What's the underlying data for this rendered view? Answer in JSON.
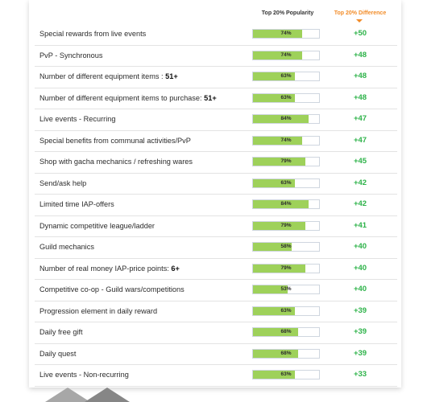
{
  "header": {
    "popularity_label": "Top 20% Popularity",
    "difference_label": "Top 20% Difference"
  },
  "colors": {
    "bar": "#9ed15a",
    "difference_text": "#2eb34a",
    "difference_header": "#f28c28"
  },
  "chart_data": {
    "type": "table",
    "columns": [
      "Top 20% Popularity",
      "Top 20% Difference"
    ],
    "sorted_by": "Top 20% Difference",
    "sort_direction": "descending",
    "rows": [
      {
        "label": "Special rewards from live events",
        "bold": "",
        "popularity": 74,
        "popularity_label": "74%",
        "difference": 50,
        "difference_label": "+50"
      },
      {
        "label": "PvP - Synchronous",
        "bold": "",
        "popularity": 74,
        "popularity_label": "74%",
        "difference": 48,
        "difference_label": "+48"
      },
      {
        "label": "Number of different equipment items : ",
        "bold": "51+",
        "popularity": 63,
        "popularity_label": "63%",
        "difference": 48,
        "difference_label": "+48"
      },
      {
        "label": "Number of different equipment items to purchase: ",
        "bold": "51+",
        "popularity": 63,
        "popularity_label": "63%",
        "difference": 48,
        "difference_label": "+48"
      },
      {
        "label": "Live events - Recurring",
        "bold": "",
        "popularity": 84,
        "popularity_label": "84%",
        "difference": 47,
        "difference_label": "+47"
      },
      {
        "label": "Special benefits from communal activities/PvP",
        "bold": "",
        "popularity": 74,
        "popularity_label": "74%",
        "difference": 47,
        "difference_label": "+47"
      },
      {
        "label": "Shop with gacha mechanics / refreshing wares",
        "bold": "",
        "popularity": 79,
        "popularity_label": "79%",
        "difference": 45,
        "difference_label": "+45"
      },
      {
        "label": "Send/ask help",
        "bold": "",
        "popularity": 63,
        "popularity_label": "63%",
        "difference": 42,
        "difference_label": "+42"
      },
      {
        "label": "Limited time IAP-offers",
        "bold": "",
        "popularity": 84,
        "popularity_label": "84%",
        "difference": 42,
        "difference_label": "+42"
      },
      {
        "label": "Dynamic competitive league/ladder",
        "bold": "",
        "popularity": 79,
        "popularity_label": "79%",
        "difference": 41,
        "difference_label": "+41"
      },
      {
        "label": "Guild mechanics",
        "bold": "",
        "popularity": 58,
        "popularity_label": "58%",
        "difference": 40,
        "difference_label": "+40"
      },
      {
        "label": "Number of real money IAP-price points: ",
        "bold": "6+",
        "popularity": 79,
        "popularity_label": "79%",
        "difference": 40,
        "difference_label": "+40"
      },
      {
        "label": "Competitive co-op - Guild wars/competitions",
        "bold": "",
        "popularity": 53,
        "popularity_label": "53%",
        "difference": 40,
        "difference_label": "+40"
      },
      {
        "label": "Progression element in daily reward",
        "bold": "",
        "popularity": 63,
        "popularity_label": "63%",
        "difference": 39,
        "difference_label": "+39"
      },
      {
        "label": "Daily free gift",
        "bold": "",
        "popularity": 68,
        "popularity_label": "68%",
        "difference": 39,
        "difference_label": "+39"
      },
      {
        "label": "Daily quest",
        "bold": "",
        "popularity": 68,
        "popularity_label": "68%",
        "difference": 39,
        "difference_label": "+39"
      },
      {
        "label": "Live events - Non-recurring",
        "bold": "",
        "popularity": 63,
        "popularity_label": "63%",
        "difference": 33,
        "difference_label": "+33"
      }
    ]
  }
}
